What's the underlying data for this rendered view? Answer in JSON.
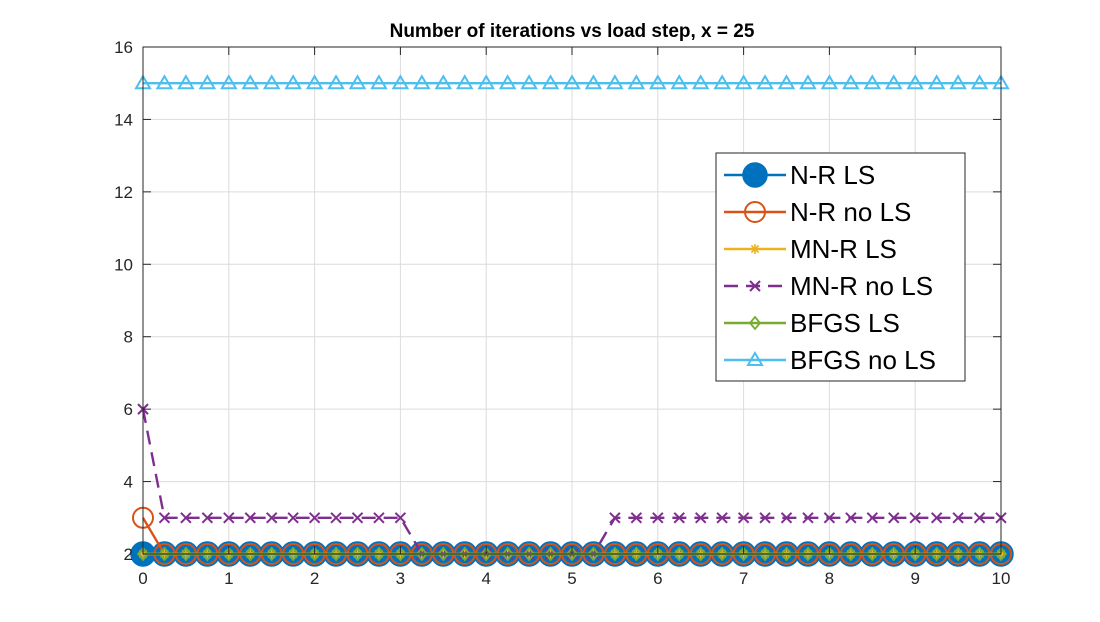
{
  "chart_data": {
    "type": "line",
    "title": "Number of iterations vs load step, x = 25",
    "xlabel": "",
    "ylabel": "",
    "xlim": [
      0,
      10
    ],
    "ylim": [
      2,
      16
    ],
    "xticks": [
      0,
      1,
      2,
      3,
      4,
      5,
      6,
      7,
      8,
      9,
      10
    ],
    "yticks": [
      2,
      4,
      6,
      8,
      10,
      12,
      14,
      16
    ],
    "grid": true,
    "legend_position": "right",
    "x": [
      0,
      0.25,
      0.5,
      0.75,
      1,
      1.25,
      1.5,
      1.75,
      2,
      2.25,
      2.5,
      2.75,
      3,
      3.25,
      3.5,
      3.75,
      4,
      4.25,
      4.5,
      4.75,
      5,
      5.25,
      5.5,
      5.75,
      6,
      6.25,
      6.5,
      6.75,
      7,
      7.25,
      7.5,
      7.75,
      8,
      8.25,
      8.5,
      8.75,
      9,
      9.25,
      9.5,
      9.75,
      10
    ],
    "series": [
      {
        "name": "N-R LS",
        "color": "#0072BD",
        "marker": "filled-circle",
        "style": "solid",
        "values": [
          2,
          2,
          2,
          2,
          2,
          2,
          2,
          2,
          2,
          2,
          2,
          2,
          2,
          2,
          2,
          2,
          2,
          2,
          2,
          2,
          2,
          2,
          2,
          2,
          2,
          2,
          2,
          2,
          2,
          2,
          2,
          2,
          2,
          2,
          2,
          2,
          2,
          2,
          2,
          2,
          2
        ]
      },
      {
        "name": "N-R no LS",
        "color": "#D95319",
        "marker": "open-circle",
        "style": "solid",
        "values": [
          3,
          2,
          2,
          2,
          2,
          2,
          2,
          2,
          2,
          2,
          2,
          2,
          2,
          2,
          2,
          2,
          2,
          2,
          2,
          2,
          2,
          2,
          2,
          2,
          2,
          2,
          2,
          2,
          2,
          2,
          2,
          2,
          2,
          2,
          2,
          2,
          2,
          2,
          2,
          2,
          2
        ]
      },
      {
        "name": "MN-R LS",
        "color": "#EDB120",
        "marker": "asterisk",
        "style": "solid",
        "values": [
          2,
          2,
          2,
          2,
          2,
          2,
          2,
          2,
          2,
          2,
          2,
          2,
          2,
          2,
          2,
          2,
          2,
          2,
          2,
          2,
          2,
          2,
          2,
          2,
          2,
          2,
          2,
          2,
          2,
          2,
          2,
          2,
          2,
          2,
          2,
          2,
          2,
          2,
          2,
          2,
          2
        ]
      },
      {
        "name": "MN-R no LS",
        "color": "#7E2F8E",
        "marker": "x",
        "style": "dashed",
        "values": [
          6,
          3,
          3,
          3,
          3,
          3,
          3,
          3,
          3,
          3,
          3,
          3,
          3,
          2,
          2,
          2,
          2,
          2,
          2,
          2,
          2,
          2,
          3,
          3,
          3,
          3,
          3,
          3,
          3,
          3,
          3,
          3,
          3,
          3,
          3,
          3,
          3,
          3,
          3,
          3,
          3
        ]
      },
      {
        "name": "BFGS LS",
        "color": "#77AC30",
        "marker": "diamond",
        "style": "solid",
        "values": [
          2,
          2,
          2,
          2,
          2,
          2,
          2,
          2,
          2,
          2,
          2,
          2,
          2,
          2,
          2,
          2,
          2,
          2,
          2,
          2,
          2,
          2,
          2,
          2,
          2,
          2,
          2,
          2,
          2,
          2,
          2,
          2,
          2,
          2,
          2,
          2,
          2,
          2,
          2,
          2,
          2
        ]
      },
      {
        "name": "BFGS no LS",
        "color": "#4DBEEE",
        "marker": "triangle",
        "style": "solid",
        "values": [
          15,
          15,
          15,
          15,
          15,
          15,
          15,
          15,
          15,
          15,
          15,
          15,
          15,
          15,
          15,
          15,
          15,
          15,
          15,
          15,
          15,
          15,
          15,
          15,
          15,
          15,
          15,
          15,
          15,
          15,
          15,
          15,
          15,
          15,
          15,
          15,
          15,
          15,
          15,
          15,
          15
        ]
      }
    ]
  }
}
